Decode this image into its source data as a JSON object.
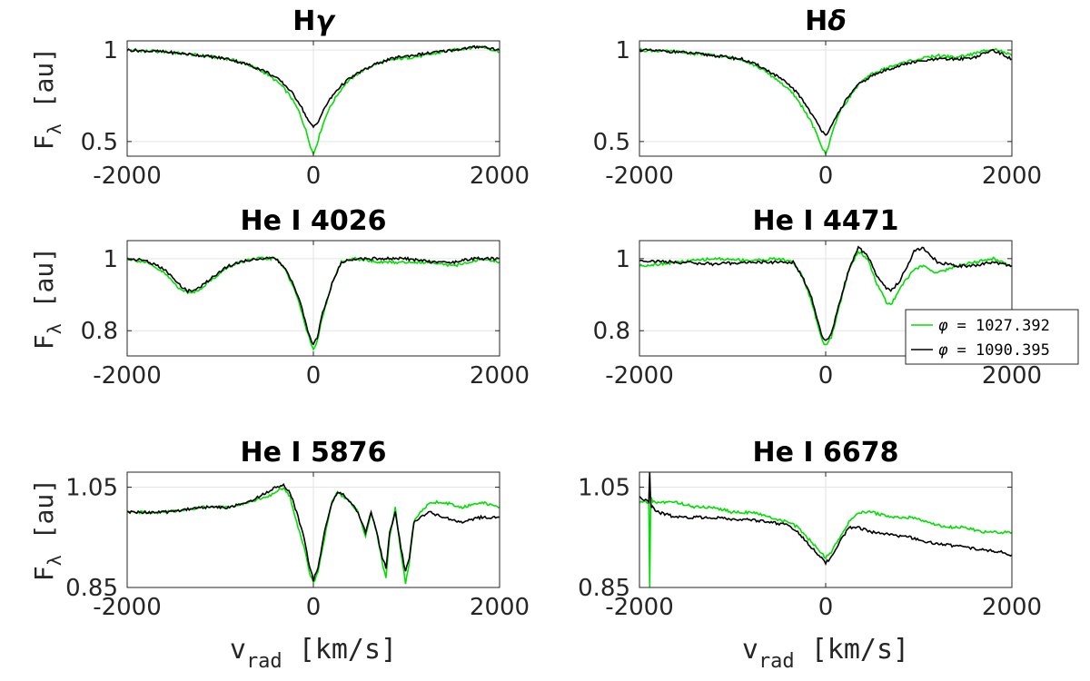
{
  "chart_data": [
    {
      "type": "line",
      "title": "Hγ",
      "title_main": "H",
      "title_sym": "γ",
      "ylabel": "F",
      "ylabel_sub": "λ",
      "ylabel_unit": "[au]",
      "xlim": [
        -2000,
        2000
      ],
      "ylim": [
        0.42,
        1.05
      ],
      "yticks": [
        0.5,
        1
      ],
      "ytick_labels": [
        "0.5",
        "1"
      ],
      "xticks": [
        -2000,
        0,
        2000
      ],
      "xtick_labels": [
        "-2000",
        "0",
        "2000"
      ],
      "grid": true,
      "series": [
        {
          "name": "φ = 1027.392",
          "color": "#00e000",
          "x": [
            -2000,
            -1600,
            -1200,
            -900,
            -700,
            -500,
            -350,
            -250,
            -150,
            -80,
            -40,
            0,
            40,
            80,
            150,
            250,
            350,
            500,
            700,
            900,
            1200,
            1500,
            1800,
            2000
          ],
          "y": [
            1.0,
            0.99,
            0.97,
            0.95,
            0.92,
            0.87,
            0.81,
            0.75,
            0.66,
            0.56,
            0.49,
            0.43,
            0.49,
            0.56,
            0.66,
            0.75,
            0.82,
            0.88,
            0.93,
            0.95,
            0.97,
            1.0,
            1.02,
            0.99
          ]
        },
        {
          "name": "φ = 1090.395",
          "color": "#000000",
          "x": [
            -2000,
            -1600,
            -1200,
            -900,
            -700,
            -500,
            -350,
            -250,
            -150,
            -80,
            -40,
            0,
            40,
            80,
            150,
            250,
            350,
            500,
            700,
            900,
            1200,
            1500,
            1800,
            2000
          ],
          "y": [
            1.0,
            0.99,
            0.97,
            0.95,
            0.92,
            0.88,
            0.83,
            0.78,
            0.71,
            0.64,
            0.6,
            0.58,
            0.6,
            0.64,
            0.71,
            0.78,
            0.83,
            0.88,
            0.93,
            0.96,
            0.98,
            1.0,
            1.02,
            1.0
          ]
        }
      ]
    },
    {
      "type": "line",
      "title": "Hδ",
      "title_main": "H",
      "title_sym": "δ",
      "ylabel": "",
      "ylabel_sub": "",
      "ylabel_unit": "",
      "xlim": [
        -2000,
        2000
      ],
      "ylim": [
        0.42,
        1.05
      ],
      "yticks": [
        0.5,
        1
      ],
      "ytick_labels": [
        "0.5",
        "1"
      ],
      "xticks": [
        -2000,
        0,
        2000
      ],
      "xtick_labels": [
        "-2000",
        "0",
        "2000"
      ],
      "grid": true,
      "series": [
        {
          "name": "φ = 1027.392",
          "color": "#00e000",
          "x": [
            -2000,
            -1600,
            -1200,
            -900,
            -700,
            -500,
            -350,
            -250,
            -150,
            -80,
            -40,
            0,
            40,
            80,
            150,
            250,
            350,
            500,
            700,
            900,
            1200,
            1400,
            1600,
            1800,
            2000
          ],
          "y": [
            1.0,
            0.99,
            0.97,
            0.95,
            0.9,
            0.83,
            0.76,
            0.69,
            0.6,
            0.52,
            0.47,
            0.43,
            0.49,
            0.57,
            0.66,
            0.74,
            0.81,
            0.87,
            0.91,
            0.94,
            0.97,
            0.96,
            0.98,
            1.01,
            0.97
          ]
        },
        {
          "name": "φ = 1090.395",
          "color": "#000000",
          "x": [
            -2000,
            -1600,
            -1200,
            -900,
            -700,
            -500,
            -350,
            -250,
            -150,
            -80,
            -40,
            0,
            40,
            80,
            150,
            250,
            350,
            500,
            700,
            900,
            1200,
            1400,
            1600,
            1800,
            2000
          ],
          "y": [
            1.0,
            0.99,
            0.97,
            0.95,
            0.91,
            0.85,
            0.79,
            0.73,
            0.65,
            0.59,
            0.56,
            0.54,
            0.56,
            0.6,
            0.67,
            0.75,
            0.81,
            0.86,
            0.9,
            0.93,
            0.95,
            0.95,
            0.96,
            1.0,
            0.95
          ]
        }
      ]
    },
    {
      "type": "line",
      "title": "He I 4026",
      "title_main": "He I 4026",
      "title_sym": "",
      "ylabel": "F",
      "ylabel_sub": "λ",
      "ylabel_unit": "[au]",
      "xlim": [
        -2000,
        2000
      ],
      "ylim": [
        0.73,
        1.05
      ],
      "yticks": [
        0.8,
        1
      ],
      "ytick_labels": [
        "0.8",
        "1"
      ],
      "xticks": [
        -2000,
        0,
        2000
      ],
      "xtick_labels": [
        "-2000",
        "0",
        "2000"
      ],
      "grid": true,
      "series": [
        {
          "name": "φ = 1027.392",
          "color": "#00e000",
          "x": [
            -2000,
            -1800,
            -1600,
            -1450,
            -1350,
            -1250,
            -1100,
            -950,
            -800,
            -600,
            -400,
            -300,
            -200,
            -120,
            -60,
            -20,
            0,
            40,
            100,
            200,
            300,
            450,
            700,
            1000,
            1300,
            1500,
            1700,
            1800,
            2000
          ],
          "y": [
            1.0,
            0.99,
            0.96,
            0.92,
            0.905,
            0.91,
            0.94,
            0.97,
            0.99,
            1.0,
            1.0,
            0.97,
            0.91,
            0.85,
            0.79,
            0.76,
            0.75,
            0.77,
            0.84,
            0.93,
            0.99,
            1.0,
            0.99,
            0.99,
            0.99,
            0.98,
            0.99,
            1.0,
            0.99
          ]
        },
        {
          "name": "φ = 1090.395",
          "color": "#000000",
          "x": [
            -2000,
            -1800,
            -1600,
            -1450,
            -1350,
            -1250,
            -1100,
            -950,
            -800,
            -600,
            -400,
            -300,
            -200,
            -120,
            -60,
            -20,
            0,
            40,
            100,
            200,
            300,
            450,
            700,
            1000,
            1300,
            1500,
            1700,
            1800,
            2000
          ],
          "y": [
            1.0,
            0.995,
            0.97,
            0.93,
            0.91,
            0.915,
            0.945,
            0.975,
            0.99,
            1.0,
            1.0,
            0.97,
            0.92,
            0.86,
            0.8,
            0.77,
            0.76,
            0.78,
            0.85,
            0.93,
            0.99,
            1.0,
            1.0,
            1.0,
            0.99,
            0.99,
            1.0,
            1.0,
            1.0
          ]
        }
      ]
    },
    {
      "type": "line",
      "title": "He I 4471",
      "title_main": "He I 4471",
      "title_sym": "",
      "ylabel": "",
      "ylabel_sub": "",
      "ylabel_unit": "",
      "xlim": [
        -2000,
        2000
      ],
      "ylim": [
        0.73,
        1.05
      ],
      "yticks": [
        0.8,
        1
      ],
      "ytick_labels": [
        "0.8",
        "1"
      ],
      "xticks": [
        -2000,
        0,
        2000
      ],
      "xtick_labels": [
        "-2000",
        "0",
        "2000"
      ],
      "grid": true,
      "series": [
        {
          "name": "φ = 1027.392",
          "color": "#00e000",
          "x": [
            -2000,
            -1600,
            -1200,
            -800,
            -500,
            -350,
            -250,
            -150,
            -80,
            -30,
            0,
            60,
            150,
            250,
            350,
            450,
            550,
            650,
            700,
            800,
            950,
            1050,
            1200,
            1400,
            1600,
            1800,
            2000
          ],
          "y": [
            0.98,
            0.99,
            1.0,
            0.995,
            1.0,
            0.99,
            0.95,
            0.88,
            0.81,
            0.77,
            0.76,
            0.78,
            0.87,
            0.97,
            1.02,
            1.0,
            0.93,
            0.88,
            0.87,
            0.92,
            0.97,
            0.98,
            0.96,
            0.98,
            0.99,
            1.0,
            0.98
          ]
        },
        {
          "name": "φ = 1090.395",
          "color": "#000000",
          "x": [
            -2000,
            -1600,
            -1200,
            -800,
            -500,
            -350,
            -250,
            -150,
            -80,
            -30,
            0,
            60,
            150,
            250,
            350,
            450,
            550,
            650,
            700,
            800,
            950,
            1050,
            1200,
            1400,
            1600,
            1800,
            2000
          ],
          "y": [
            0.995,
            0.99,
            0.985,
            0.99,
            0.99,
            0.99,
            0.95,
            0.89,
            0.82,
            0.78,
            0.77,
            0.79,
            0.88,
            0.97,
            1.03,
            1.01,
            0.95,
            0.92,
            0.91,
            0.94,
            1.02,
            1.03,
            0.99,
            0.98,
            0.98,
            0.99,
            0.98
          ]
        }
      ]
    },
    {
      "type": "line",
      "title": "He I 5876",
      "title_main": "He I 5876",
      "title_sym": "",
      "ylabel": "F",
      "ylabel_sub": "λ",
      "ylabel_unit": "[au]",
      "xlim": [
        -2000,
        2000
      ],
      "ylim": [
        0.85,
        1.08
      ],
      "yticks": [
        0.85,
        1.05
      ],
      "ytick_labels": [
        "0.85",
        "1.05"
      ],
      "xticks": [
        -2000,
        0,
        2000
      ],
      "xtick_labels": [
        "-2000",
        "0",
        "2000"
      ],
      "xlabel": "v",
      "xlabel_sub": "rad",
      "xlabel_unit": "[km/s]",
      "grid": true,
      "series": [
        {
          "name": "φ = 1027.392",
          "color": "#00e000",
          "x": [
            -2000,
            -1600,
            -1200,
            -900,
            -700,
            -500,
            -400,
            -320,
            -250,
            -180,
            -100,
            -40,
            0,
            50,
            120,
            200,
            260,
            320,
            400,
            480,
            560,
            620,
            680,
            740,
            780,
            820,
            880,
            940,
            990,
            1030,
            1080,
            1150,
            1250,
            1400,
            1600,
            1800,
            2000
          ],
          "y": [
            1.0,
            1.0,
            1.01,
            1.01,
            1.02,
            1.03,
            1.04,
            1.05,
            1.03,
            0.98,
            0.93,
            0.88,
            0.86,
            0.88,
            0.95,
            1.02,
            1.04,
            1.03,
            1.02,
            1.0,
            0.95,
            1.0,
            0.96,
            0.9,
            0.87,
            0.95,
            1.01,
            0.92,
            0.86,
            0.9,
            0.98,
            1.0,
            1.02,
            1.02,
            1.01,
            1.02,
            1.01
          ]
        },
        {
          "name": "φ = 1090.395",
          "color": "#000000",
          "x": [
            -2000,
            -1600,
            -1200,
            -900,
            -700,
            -500,
            -400,
            -320,
            -250,
            -180,
            -100,
            -40,
            0,
            50,
            120,
            200,
            260,
            320,
            400,
            480,
            560,
            620,
            680,
            740,
            780,
            820,
            880,
            940,
            990,
            1030,
            1080,
            1150,
            1250,
            1400,
            1600,
            1800,
            2000
          ],
          "y": [
            1.0,
            1.0,
            1.01,
            1.01,
            1.02,
            1.04,
            1.05,
            1.055,
            1.04,
            1.0,
            0.95,
            0.89,
            0.865,
            0.89,
            0.96,
            1.02,
            1.04,
            1.035,
            1.02,
            1.0,
            0.96,
            1.0,
            0.96,
            0.91,
            0.89,
            0.96,
            1.0,
            0.93,
            0.88,
            0.91,
            0.98,
            0.99,
            1.0,
            0.99,
            0.98,
            0.99,
            0.99
          ]
        }
      ]
    },
    {
      "type": "line",
      "title": "He I 6678",
      "title_main": "He I 6678",
      "title_sym": "",
      "ylabel": "",
      "ylabel_sub": "",
      "ylabel_unit": "",
      "xlim": [
        -2000,
        2000
      ],
      "ylim": [
        0.85,
        1.08
      ],
      "yticks": [
        0.85,
        1.05
      ],
      "ytick_labels": [
        "0.85",
        "1.05"
      ],
      "xticks": [
        -2000,
        0,
        2000
      ],
      "xtick_labels": [
        "-2000",
        "0",
        "2000"
      ],
      "xlabel": "v",
      "xlabel_sub": "rad",
      "xlabel_unit": "[km/s]",
      "grid": true,
      "series": [
        {
          "name": "φ = 1027.392",
          "color": "#00e000",
          "x": [
            -2000,
            -1950,
            -1900,
            -1890,
            -1880,
            -1870,
            -1860,
            -1800,
            -1600,
            -1400,
            -1200,
            -1000,
            -800,
            -600,
            -400,
            -300,
            -200,
            -100,
            -30,
            0,
            60,
            150,
            250,
            350,
            500,
            700,
            900,
            1100,
            1300,
            1500,
            1700,
            1900,
            2000
          ],
          "y": [
            1.02,
            1.02,
            1.02,
            0.85,
            1.02,
            1.03,
            1.02,
            1.02,
            1.02,
            1.01,
            1.01,
            1.0,
            1.0,
            0.99,
            0.98,
            0.97,
            0.95,
            0.93,
            0.915,
            0.91,
            0.92,
            0.95,
            0.98,
            1.0,
            1.0,
            0.99,
            0.99,
            0.98,
            0.97,
            0.97,
            0.96,
            0.96,
            0.96
          ]
        },
        {
          "name": "φ = 1090.395",
          "color": "#000000",
          "x": [
            -2000,
            -1950,
            -1900,
            -1890,
            -1880,
            -1870,
            -1860,
            -1800,
            -1600,
            -1400,
            -1200,
            -1000,
            -800,
            -600,
            -400,
            -300,
            -200,
            -100,
            -30,
            0,
            60,
            150,
            250,
            350,
            500,
            700,
            900,
            1100,
            1300,
            1500,
            1700,
            1900,
            2000
          ],
          "y": [
            1.03,
            1.025,
            1.02,
            1.08,
            1.02,
            1.01,
            1.01,
            1.0,
            0.99,
            0.99,
            0.99,
            0.985,
            0.985,
            0.98,
            0.975,
            0.96,
            0.94,
            0.92,
            0.905,
            0.9,
            0.91,
            0.94,
            0.97,
            0.97,
            0.96,
            0.955,
            0.95,
            0.94,
            0.935,
            0.93,
            0.925,
            0.92,
            0.915
          ]
        }
      ]
    }
  ],
  "legend": {
    "placement": "right-middle",
    "entries": [
      {
        "prefix": "φ",
        "text": " = 1027.392",
        "color": "#00e000"
      },
      {
        "prefix": "φ",
        "text": " = 1090.395",
        "color": "#000000"
      }
    ]
  }
}
